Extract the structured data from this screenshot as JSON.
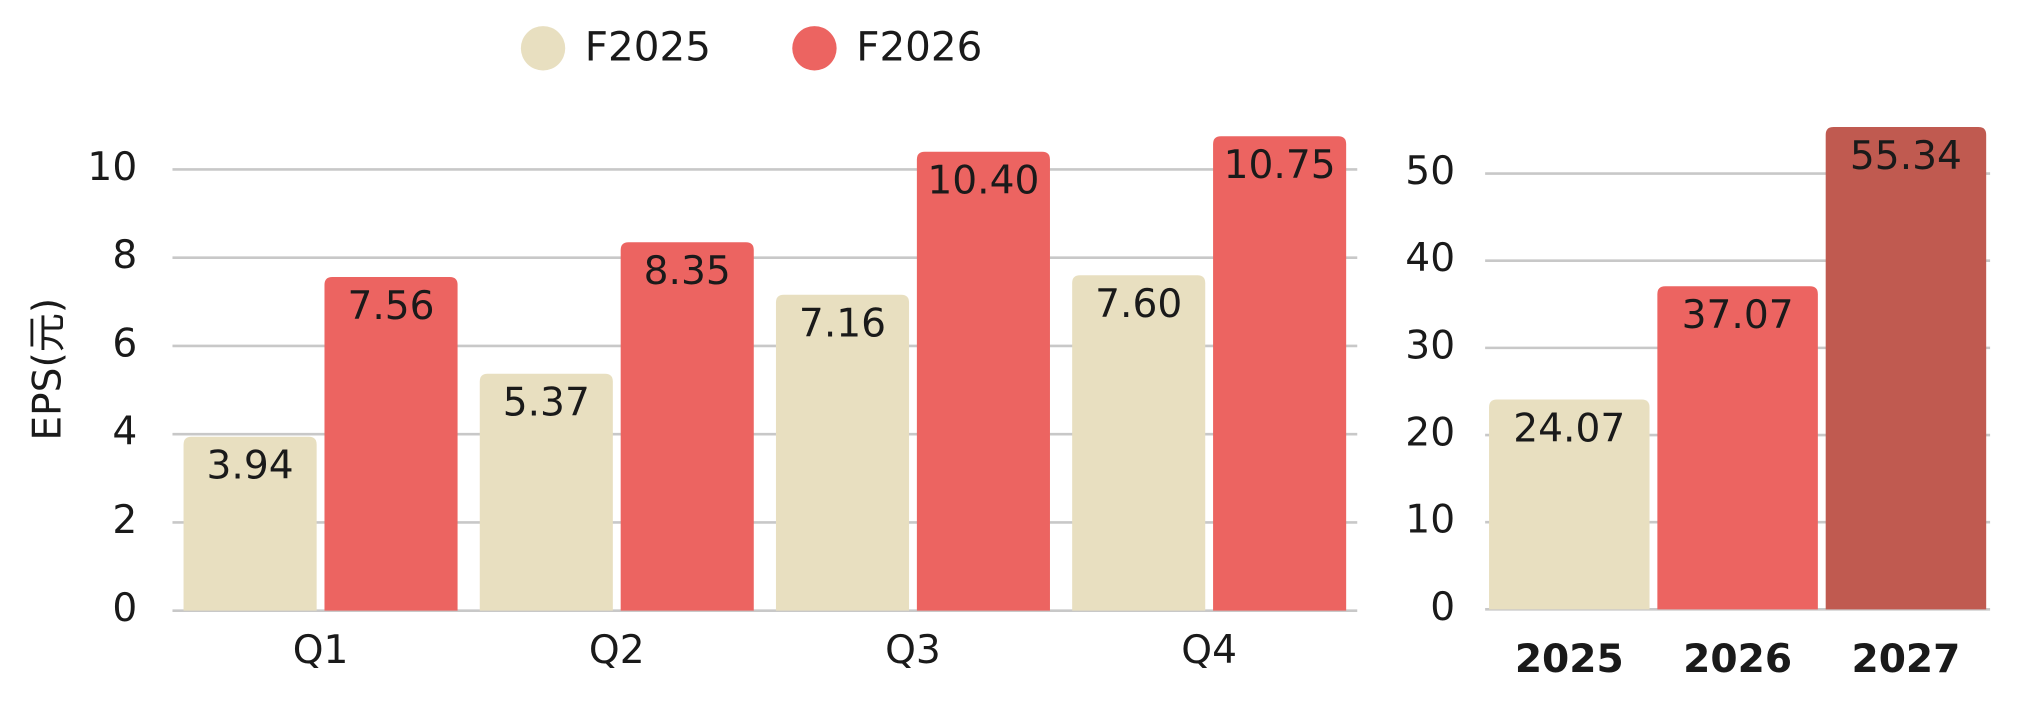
{
  "chart_data": [
    {
      "type": "bar",
      "y_label": "EPS(元)",
      "categories": [
        "Q1",
        "Q2",
        "Q3",
        "Q4"
      ],
      "series": [
        {
          "name": "F2025",
          "color": "#e8dfc0",
          "values": [
            3.94,
            5.37,
            7.16,
            7.6
          ],
          "value_labels": [
            "3.94",
            "5.37",
            "7.16",
            "7.60"
          ]
        },
        {
          "name": "F2026",
          "color": "#ec6461",
          "values": [
            7.56,
            8.35,
            10.4,
            10.75
          ],
          "value_labels": [
            "7.56",
            "8.35",
            "10.40",
            "10.75"
          ]
        }
      ],
      "ylim": [
        0,
        11
      ],
      "yticks": [
        0,
        2,
        4,
        6,
        8,
        10
      ],
      "grid": true,
      "legend": "top"
    },
    {
      "type": "bar",
      "categories": [
        "2025",
        "2026",
        "2027"
      ],
      "values": [
        24.07,
        37.07,
        55.34
      ],
      "value_labels": [
        "24.07",
        "37.07",
        "55.34"
      ],
      "colors": [
        "#e8dfc0",
        "#ec6461",
        "#c05a50"
      ],
      "ylim": [
        0,
        55
      ],
      "yticks": [
        0,
        10,
        20,
        30,
        40,
        50
      ],
      "grid": true
    }
  ]
}
